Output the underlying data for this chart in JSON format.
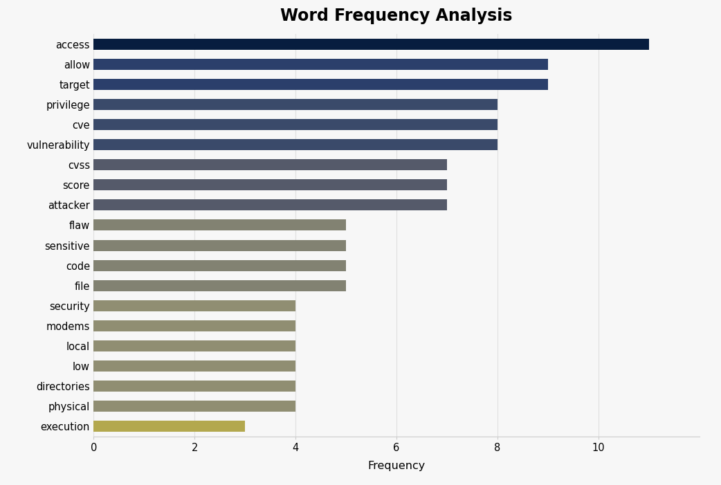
{
  "title": "Word Frequency Analysis",
  "xlabel": "Frequency",
  "categories": [
    "access",
    "allow",
    "target",
    "privilege",
    "cve",
    "vulnerability",
    "cvss",
    "score",
    "attacker",
    "flaw",
    "sensitive",
    "code",
    "file",
    "security",
    "modems",
    "local",
    "low",
    "directories",
    "physical",
    "execution"
  ],
  "values": [
    11,
    9,
    9,
    8,
    8,
    8,
    7,
    7,
    7,
    5,
    5,
    5,
    5,
    4,
    4,
    4,
    4,
    4,
    4,
    3
  ],
  "bar_colors": [
    "#071d3f",
    "#2b3f6b",
    "#2b3f6b",
    "#3a4a6a",
    "#3a4a6a",
    "#3a4a6a",
    "#555a6a",
    "#555a6a",
    "#555a6a",
    "#828272",
    "#828272",
    "#828272",
    "#828272",
    "#908e72",
    "#908e72",
    "#908e72",
    "#908e72",
    "#908e72",
    "#908e72",
    "#b3a84e"
  ],
  "background_color": "#f7f7f7",
  "title_fontsize": 17,
  "xlim": [
    0,
    12
  ],
  "xticks": [
    0,
    2,
    4,
    6,
    8,
    10
  ]
}
